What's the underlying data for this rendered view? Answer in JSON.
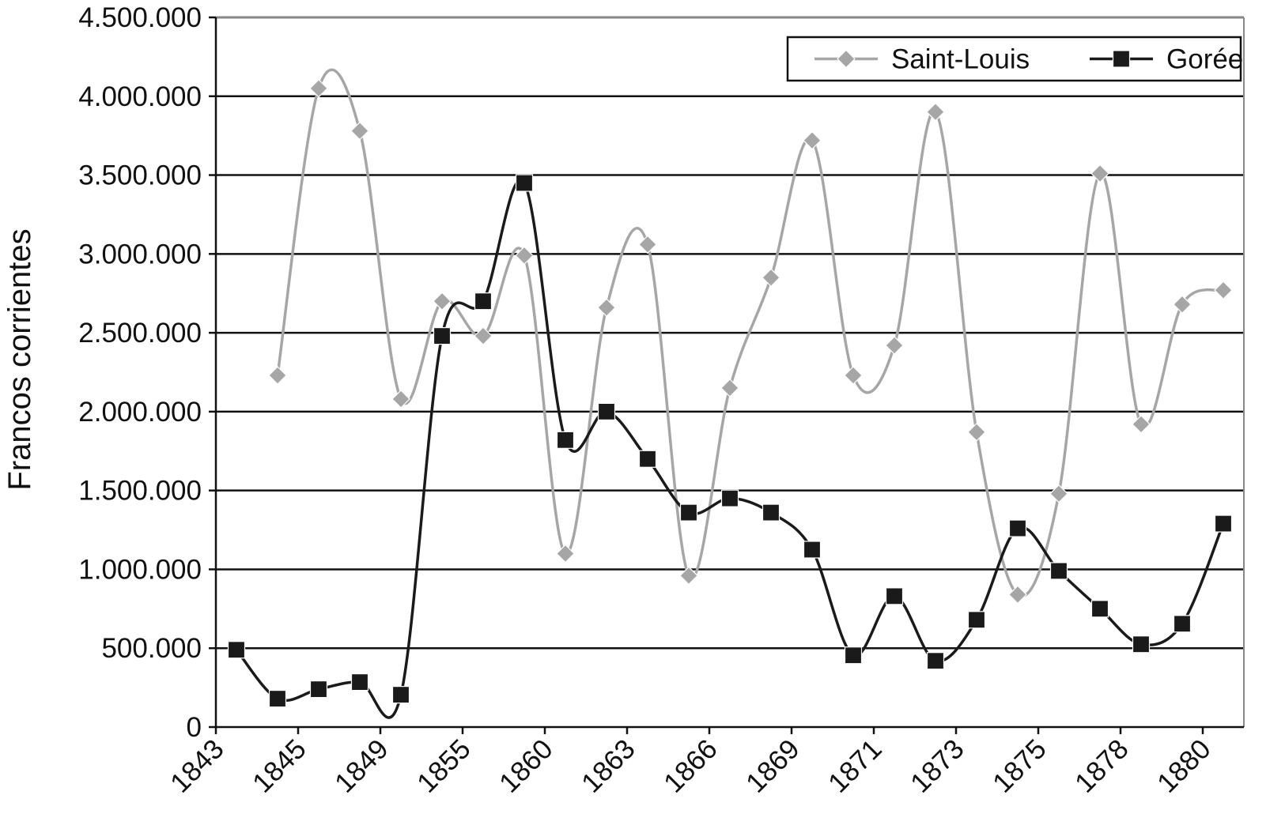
{
  "chart_data": {
    "type": "line",
    "title": "",
    "xlabel": "",
    "ylabel": "Francos corrientes",
    "ylim": [
      0,
      4500000
    ],
    "yticks": [
      0,
      500000,
      1000000,
      1500000,
      2000000,
      2500000,
      3000000,
      3500000,
      4000000,
      4500000
    ],
    "ytick_labels": [
      "0",
      "500.000",
      "1.000.000",
      "1.500.000",
      "2.000.000",
      "2.500.000",
      "3.000.000",
      "3.500.000",
      "4.000.000",
      "4.500.000"
    ],
    "xtick_labels": [
      "1843",
      "1845",
      "1849",
      "1855",
      "1860",
      "1863",
      "1866",
      "1869",
      "1871",
      "1873",
      "1875",
      "1878",
      "1880"
    ],
    "grid": "horizontal",
    "legend_position": "top-right",
    "n_points": 25,
    "series": [
      {
        "name": "Saint-Louis",
        "color": "#a6a6a6",
        "marker": "diamond",
        "start_index": 1,
        "values": [
          2230000,
          4050000,
          3780000,
          2080000,
          2700000,
          2480000,
          2990000,
          1100000,
          2660000,
          3060000,
          960000,
          2150000,
          2850000,
          3720000,
          2230000,
          2420000,
          3900000,
          1870000,
          840000,
          1480000,
          3510000,
          1920000,
          2680000,
          2770000
        ]
      },
      {
        "name": "Gorée",
        "color": "#1a1a1a",
        "marker": "square",
        "start_index": 0,
        "values": [
          490000,
          180000,
          240000,
          285000,
          205000,
          2480000,
          2700000,
          3450000,
          1820000,
          2000000,
          1700000,
          1360000,
          1450000,
          1360000,
          1125000,
          455000,
          830000,
          420000,
          680000,
          1260000,
          990000,
          750000,
          525000,
          655000,
          1290000
        ]
      }
    ]
  }
}
